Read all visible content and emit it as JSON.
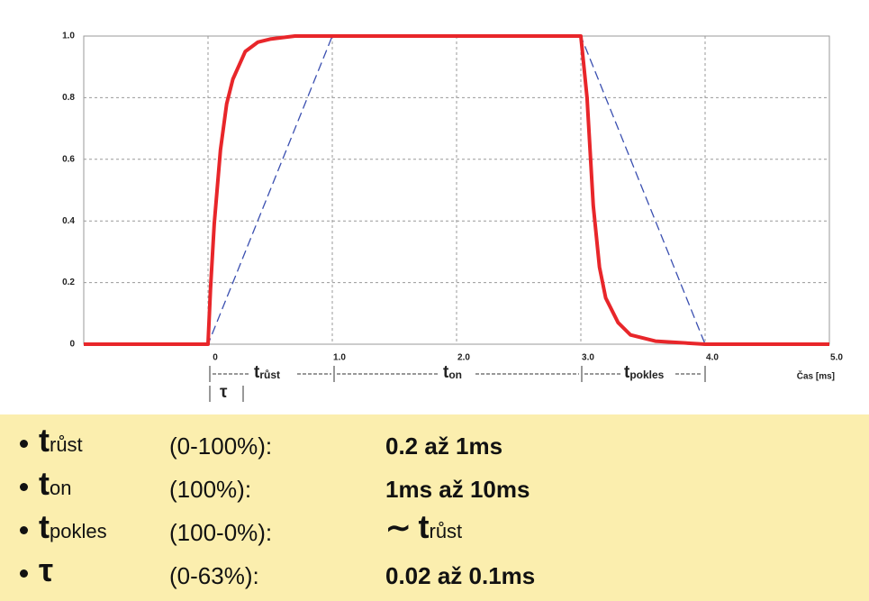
{
  "chart_data": {
    "type": "line",
    "xlabel": "Čas [ms]",
    "xlim": [
      -1,
      5
    ],
    "ylim": [
      0,
      1
    ],
    "xticks": [
      0,
      {
        "value": 1,
        "label": "1.0"
      },
      {
        "value": 2,
        "label": "2.0"
      },
      {
        "value": 3,
        "label": "3.0"
      },
      {
        "value": 4,
        "label": "4.0"
      },
      {
        "value": 5,
        "label": "5.0"
      }
    ],
    "yticks": [
      0,
      0.2,
      0.4,
      0.6,
      0.8,
      {
        "value": 1,
        "label": "1.0"
      }
    ],
    "grid": true,
    "series": [
      {
        "color": "#e8262a",
        "style": "solid",
        "x": [
          -1,
          0,
          0.02,
          0.05,
          0.1,
          0.15,
          0.2,
          0.3,
          0.4,
          0.5,
          0.7,
          1.0,
          3.0,
          3.05,
          3.1,
          3.15,
          3.2,
          3.3,
          3.4,
          3.6,
          4.0,
          5.0
        ],
        "values": [
          0,
          0,
          0.18,
          0.39,
          0.63,
          0.78,
          0.86,
          0.95,
          0.98,
          0.99,
          1,
          1,
          1,
          0.8,
          0.45,
          0.25,
          0.15,
          0.07,
          0.03,
          0.01,
          0,
          0
        ]
      },
      {
        "color": "#3a4fb0",
        "style": "dashed",
        "x": [
          -1,
          0,
          1,
          3,
          4,
          5
        ],
        "values": [
          0,
          0,
          1,
          1,
          0,
          0
        ]
      }
    ],
    "annotations": [
      {
        "symbol": "t",
        "sub": "růst"
      },
      {
        "symbol": "t",
        "sub": "on"
      },
      {
        "symbol": "t",
        "sub": "pokles"
      },
      {
        "symbol": "τ"
      }
    ]
  },
  "table": {
    "rows": [
      {
        "symbol": "t",
        "sub": "růst",
        "range": "(0-100%):",
        "value": "0.2 až 1ms"
      },
      {
        "symbol": "t",
        "sub": "on",
        "range": "(100%):",
        "value": "1ms až 10ms"
      },
      {
        "symbol": "t",
        "sub": "pokles",
        "range": "(100-0%):",
        "value": {
          "prefix": "∼",
          "symbol": "t",
          "sub": "růst"
        }
      },
      {
        "symbol": "τ",
        "range": "(0-63%):",
        "value": "0.02 až 0.1ms"
      }
    ]
  }
}
